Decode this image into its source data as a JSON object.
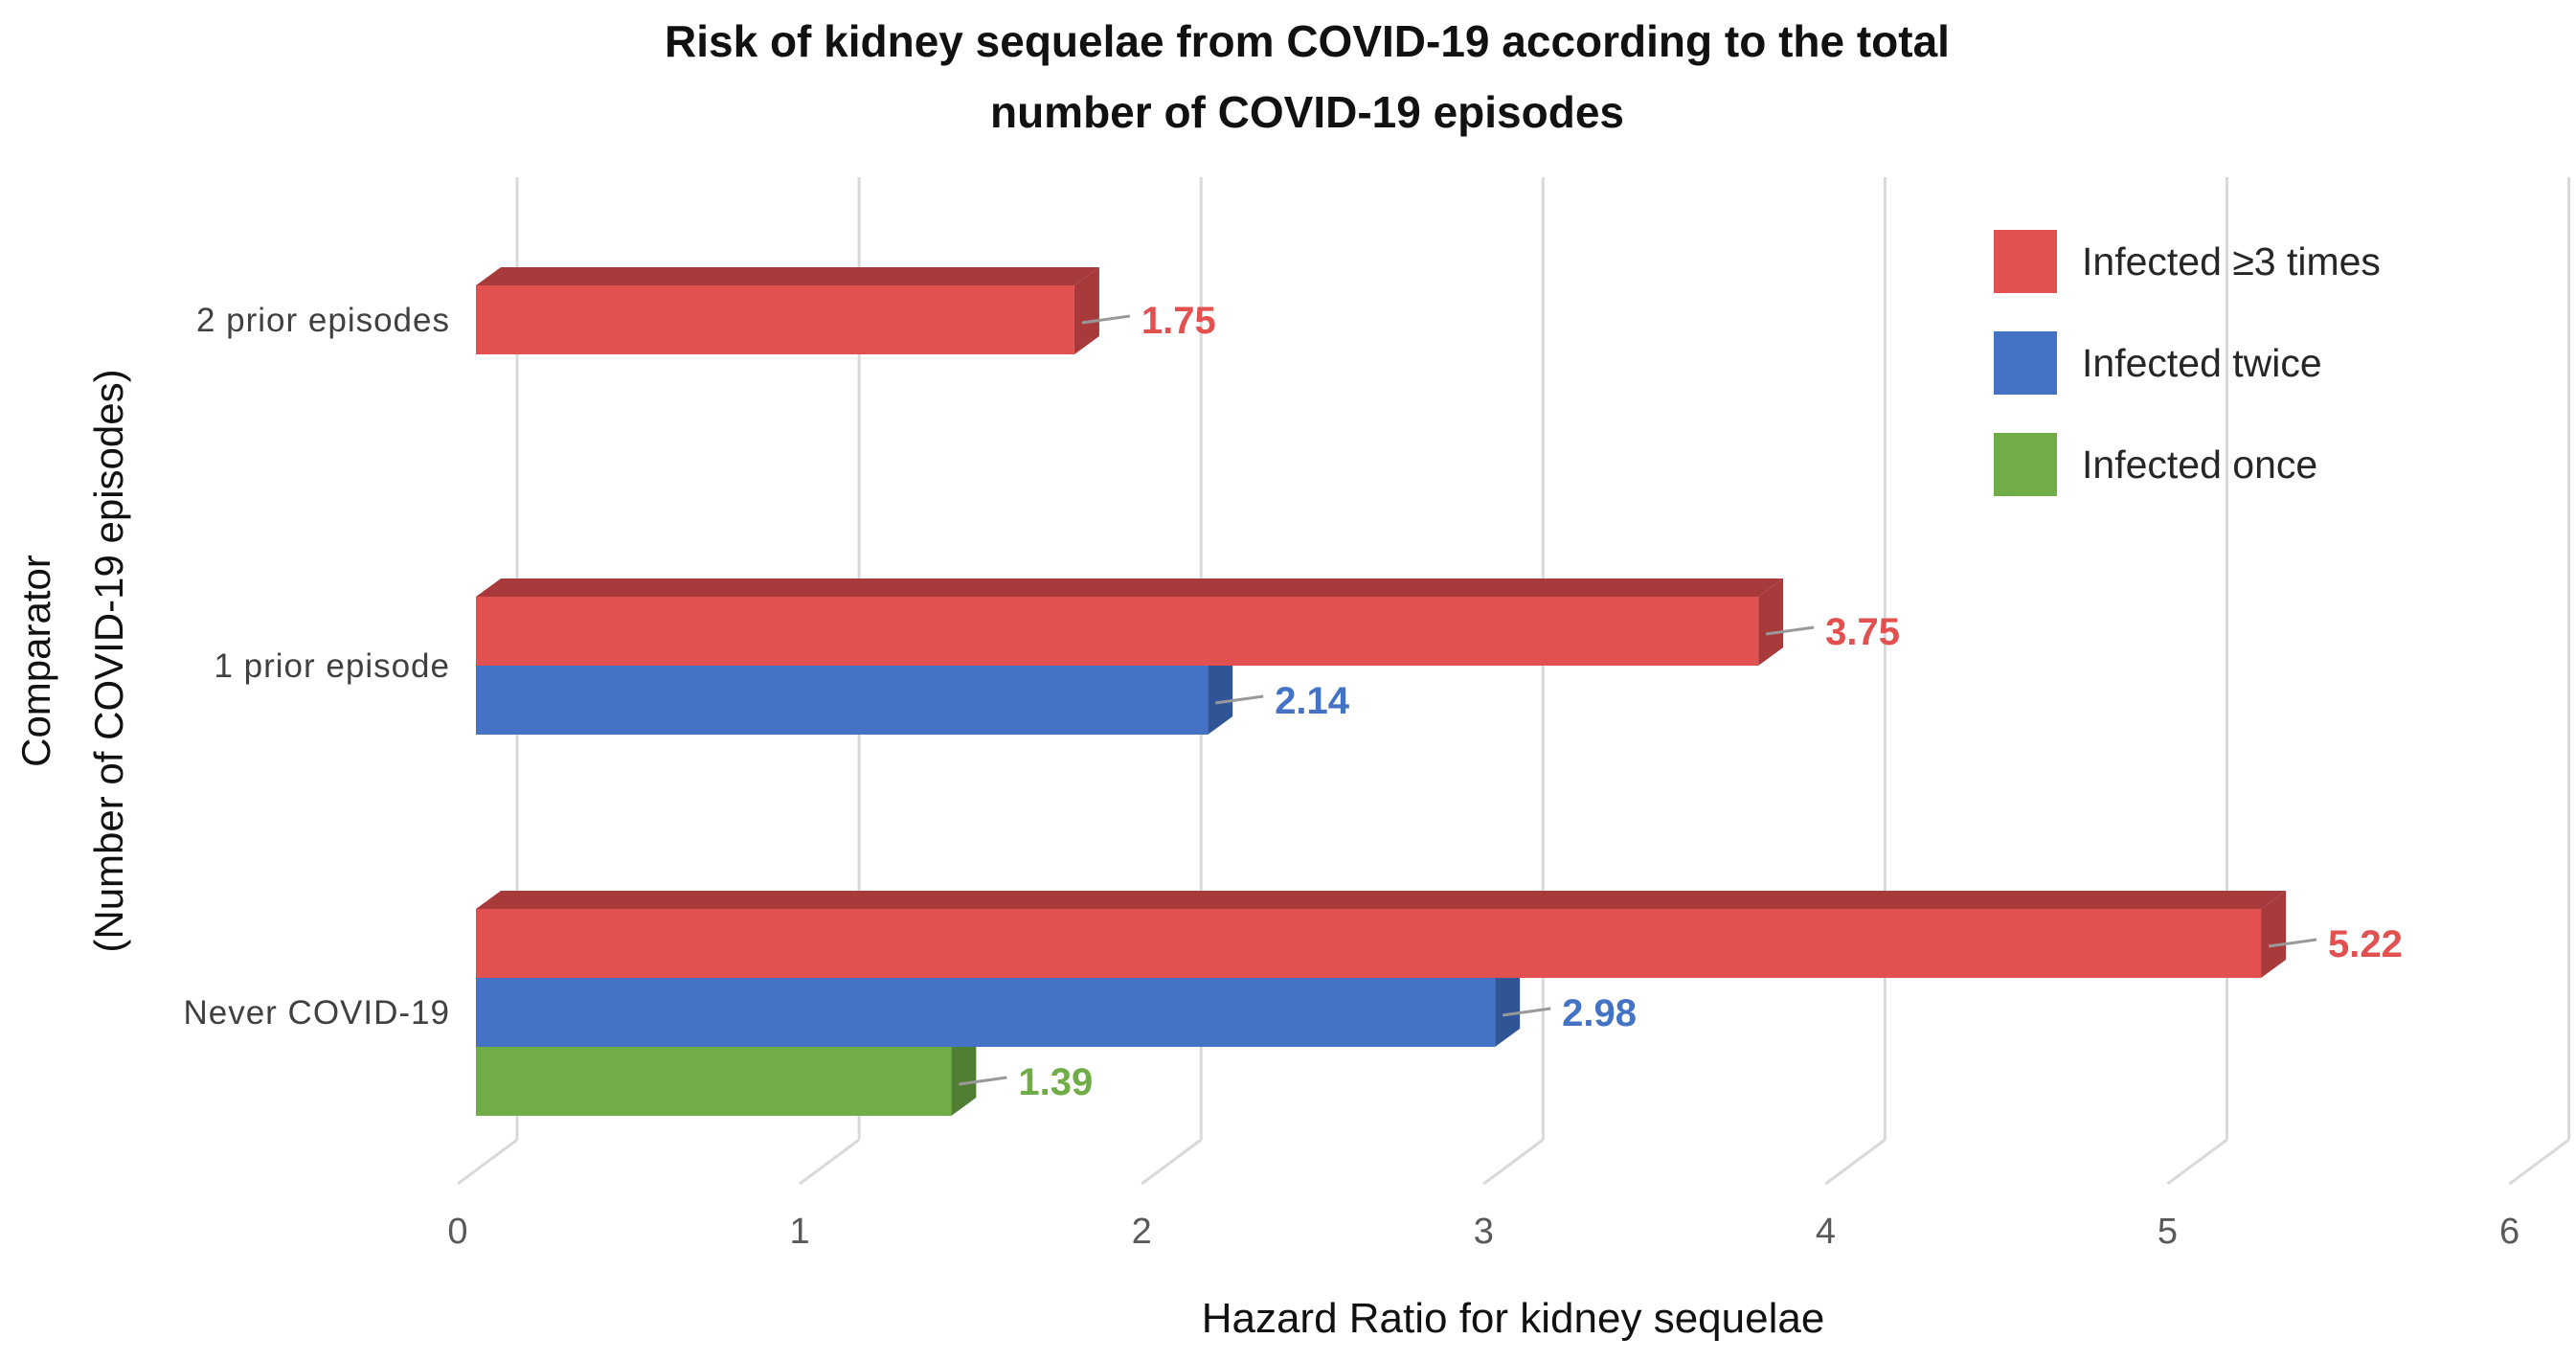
{
  "title": {
    "line1": "Risk of kidney sequelae from COVID-19 according to the total",
    "line2": "number of COVID-19 episodes"
  },
  "x_axis": {
    "title": "Hazard Ratio for kidney sequelae",
    "ticks": [
      "0",
      "1",
      "2",
      "3",
      "4",
      "5",
      "6"
    ]
  },
  "y_axis": {
    "title_line1": "Comparator",
    "title_line2": "(Number of COVID-19 episodes)"
  },
  "colors": {
    "gridline": "#D9D9D9",
    "leader_line": "#999999",
    "tick_text": "#595959",
    "category_text": "#404040",
    "legend_text": "#262626"
  },
  "chart_data": {
    "type": "bar",
    "orientation": "horizontal",
    "style": "3d",
    "title": "Risk of kidney sequelae from COVID-19 according to the total number of COVID-19 episodes",
    "xlabel": "Hazard Ratio for kidney sequelae",
    "ylabel": "Comparator (Number of COVID-19 episodes)",
    "categories": [
      "2 prior episodes",
      "1 prior episode",
      "Never COVID-19"
    ],
    "xlim": [
      0,
      6
    ],
    "grid": true,
    "legend_position": "top-right",
    "data_labels": true,
    "series": [
      {
        "name": "Infected ≥3 times",
        "color": "#E2504F",
        "dark_color": "#A93A3C",
        "values": [
          1.75,
          3.75,
          5.22
        ]
      },
      {
        "name": "Infected twice",
        "color": "#4472C4",
        "dark_color": "#2F5597",
        "values": [
          null,
          2.14,
          2.98
        ]
      },
      {
        "name": "Infected once",
        "color": "#70AD47",
        "dark_color": "#507E32",
        "values": [
          null,
          null,
          1.39
        ]
      }
    ]
  }
}
